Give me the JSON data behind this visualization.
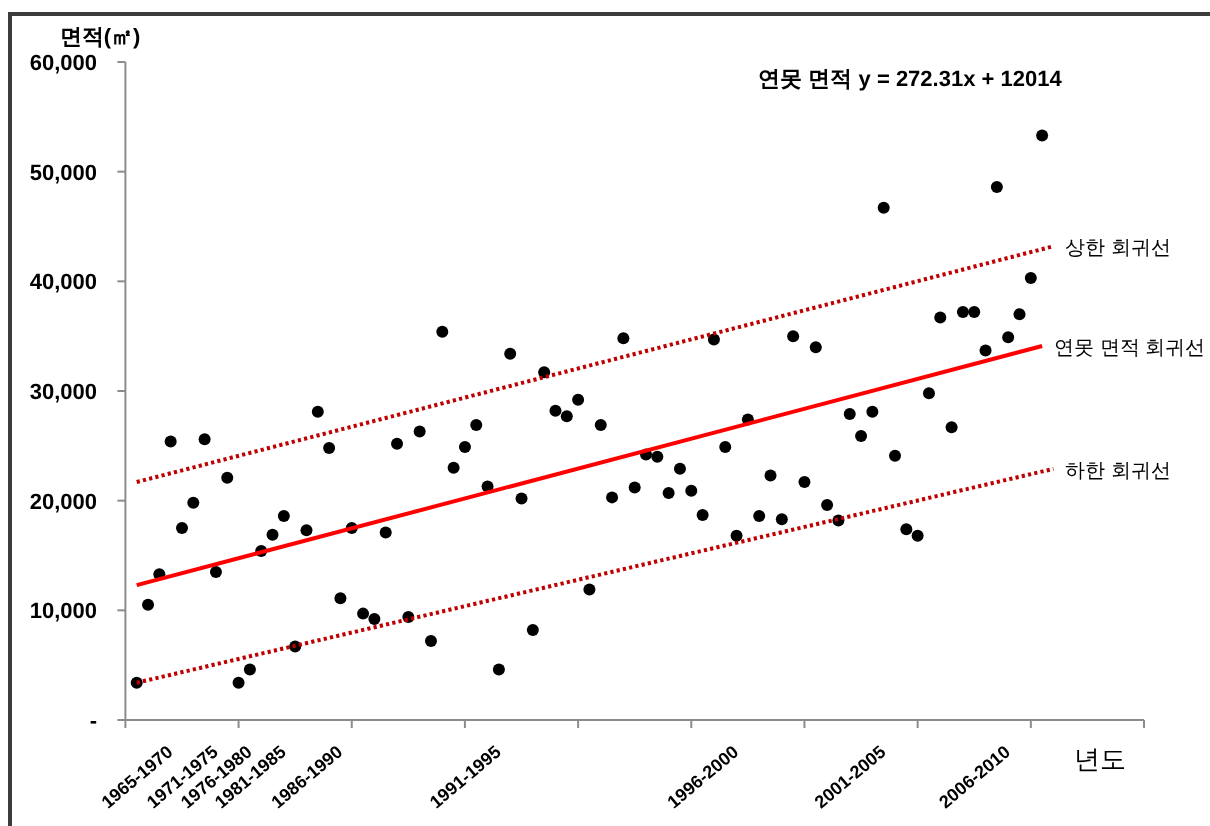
{
  "chart_data": {
    "type": "scatter",
    "ylabel": "면적(㎡)",
    "xlabel": "년도",
    "annotations": [
      "연못 면적  y = 272.31x + 12014"
    ],
    "categories": [
      null,
      null,
      null,
      "1965-1970",
      null,
      null,
      null,
      "1971-1975",
      null,
      null,
      "1976-1980",
      null,
      null,
      "1981-1985",
      null,
      null,
      null,
      null,
      "1986-1990",
      null,
      null,
      null,
      null,
      null,
      null,
      null,
      null,
      null,
      null,
      null,
      null,
      null,
      "1991-1995",
      null,
      null,
      null,
      null,
      null,
      null,
      null,
      null,
      null,
      null,
      null,
      null,
      null,
      null,
      null,
      null,
      null,
      null,
      null,
      null,
      "1996-2000",
      null,
      null,
      null,
      null,
      null,
      null,
      null,
      null,
      null,
      null,
      null,
      null,
      "2001-2005",
      null,
      null,
      null,
      null,
      null,
      null,
      null,
      null,
      null,
      null,
      "2006-2010",
      null,
      null,
      null,
      null,
      null,
      null,
      null,
      null,
      null,
      null,
      null
    ],
    "ylim": [
      0,
      60000
    ],
    "yticks": [
      {
        "value": 0,
        "label": "-"
      },
      {
        "value": 10000,
        "label": "10,000"
      },
      {
        "value": 20000,
        "label": "20,000"
      },
      {
        "value": 30000,
        "label": "30,000"
      },
      {
        "value": 40000,
        "label": "40,000"
      },
      {
        "value": 50000,
        "label": "50,000"
      },
      {
        "value": 60000,
        "label": "60,000"
      }
    ],
    "marker": "circle",
    "series": [
      {
        "color": "#000000",
        "values": [
          3400,
          10500,
          13300,
          25400,
          17500,
          19800,
          25600,
          13500,
          22100,
          3400,
          4600,
          15400,
          16900,
          18600,
          6700,
          17300,
          28100,
          24800,
          11100,
          17500,
          9700,
          9200,
          17100,
          25200,
          9400,
          26300,
          7200,
          35400,
          23000,
          24900,
          26900,
          21300,
          4600,
          33400,
          20200,
          8200,
          31700,
          28200,
          27700,
          29200,
          11900,
          26900,
          20300,
          34800,
          21200,
          24200,
          24000,
          20700,
          22900,
          20900,
          18700,
          34700,
          24900,
          16800,
          27400,
          18600,
          22300,
          18300,
          35000,
          21700,
          34000,
          19600,
          18200,
          27900,
          25900,
          28100,
          46700,
          24100,
          17400,
          16800,
          29800,
          36700,
          26700,
          37200,
          37200,
          33700,
          48600,
          34900,
          37000,
          40300,
          53300,
          null,
          null,
          null,
          null,
          null,
          null,
          null,
          null
        ]
      },
      {
        "type": "line",
        "name": "상한 회귀선",
        "color": "#c00000",
        "line_style": "dotted",
        "marker": "none",
        "values": [
          21700,
          null,
          null,
          null,
          null,
          null,
          null,
          null,
          null,
          null,
          null,
          null,
          null,
          null,
          null,
          null,
          null,
          null,
          null,
          null,
          null,
          null,
          null,
          null,
          null,
          null,
          null,
          null,
          null,
          null,
          null,
          null,
          null,
          null,
          null,
          null,
          null,
          null,
          null,
          null,
          null,
          null,
          null,
          null,
          null,
          null,
          null,
          null,
          null,
          null,
          null,
          null,
          null,
          null,
          null,
          null,
          null,
          null,
          null,
          null,
          null,
          null,
          null,
          null,
          null,
          null,
          null,
          null,
          null,
          null,
          null,
          null,
          null,
          null,
          null,
          null,
          null,
          null,
          null,
          null,
          null,
          43200,
          null,
          null,
          null,
          null,
          null,
          null,
          null
        ]
      },
      {
        "type": "line",
        "name": "연못 면적 회귀선",
        "color": "#ff0000",
        "line_style": "solid",
        "marker": "none",
        "values": [
          12300,
          null,
          null,
          null,
          null,
          null,
          null,
          null,
          null,
          null,
          null,
          null,
          null,
          null,
          null,
          null,
          null,
          null,
          null,
          null,
          null,
          null,
          null,
          null,
          null,
          null,
          null,
          null,
          null,
          null,
          null,
          null,
          null,
          null,
          null,
          null,
          null,
          null,
          null,
          null,
          null,
          null,
          null,
          null,
          null,
          null,
          null,
          null,
          null,
          null,
          null,
          null,
          null,
          null,
          null,
          null,
          null,
          null,
          null,
          null,
          null,
          null,
          null,
          null,
          null,
          null,
          null,
          null,
          null,
          null,
          null,
          null,
          null,
          null,
          null,
          null,
          null,
          null,
          null,
          null,
          34100,
          null,
          null,
          null,
          null,
          null,
          null,
          null,
          null
        ]
      },
      {
        "type": "line",
        "name": "하한 회귀선",
        "color": "#c00000",
        "line_style": "dotted",
        "marker": "none",
        "values": [
          3400,
          null,
          null,
          null,
          null,
          null,
          null,
          null,
          null,
          null,
          null,
          null,
          null,
          null,
          null,
          null,
          null,
          null,
          null,
          null,
          null,
          null,
          null,
          null,
          null,
          null,
          null,
          null,
          null,
          null,
          null,
          null,
          null,
          null,
          null,
          null,
          null,
          null,
          null,
          null,
          null,
          null,
          null,
          null,
          null,
          null,
          null,
          null,
          null,
          null,
          null,
          null,
          null,
          null,
          null,
          null,
          null,
          null,
          null,
          null,
          null,
          null,
          null,
          null,
          null,
          null,
          null,
          null,
          null,
          null,
          null,
          null,
          null,
          null,
          null,
          null,
          null,
          null,
          null,
          null,
          null,
          22900,
          null,
          null,
          null,
          null,
          null,
          null,
          null
        ]
      }
    ]
  }
}
